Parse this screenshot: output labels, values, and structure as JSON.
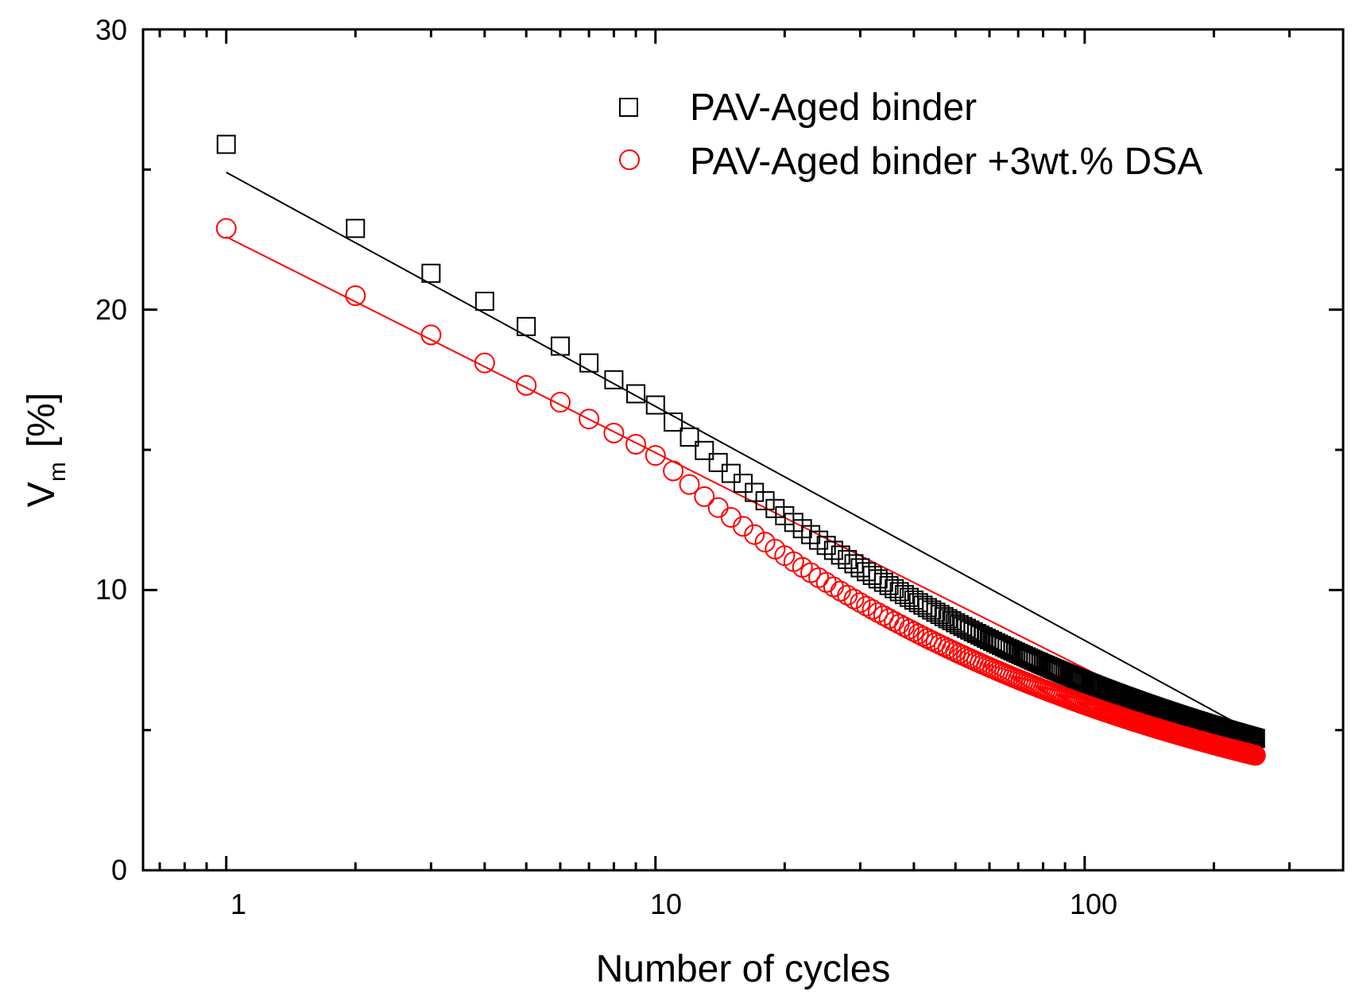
{
  "chart_data": {
    "type": "scatter",
    "xscale": "log",
    "xlim": [
      0.64,
      400
    ],
    "ylim": [
      0,
      30
    ],
    "xlabel": "Number of cycles",
    "ylabel": "V",
    "ylabel_subscript": "m",
    "ylabel_unit": "[%]",
    "grid": false,
    "legend_position": "top-right",
    "x_ticks": [
      1,
      10,
      100
    ],
    "x_tick_labels": [
      "1",
      "10",
      "100"
    ],
    "y_ticks": [
      0,
      10,
      20,
      30
    ],
    "y_tick_labels": [
      "0",
      "10",
      "20",
      "30"
    ],
    "y_minor_ticks": [
      5,
      15,
      25
    ],
    "cycles": {
      "start": 1,
      "end": 250
    },
    "series": [
      {
        "name": "PAV-Aged binder",
        "marker": "square",
        "color": "#000000",
        "fit": {
          "a": 24.9,
          "b": 8.35
        },
        "points_first": [
          {
            "x": 1,
            "y": 25.9
          },
          {
            "x": 2,
            "y": 22.9
          },
          {
            "x": 3,
            "y": 21.3
          },
          {
            "x": 4,
            "y": 20.3
          },
          {
            "x": 5,
            "y": 19.4
          },
          {
            "x": 6,
            "y": 18.7
          },
          {
            "x": 7,
            "y": 18.1
          },
          {
            "x": 8,
            "y": 17.5
          },
          {
            "x": 9,
            "y": 17.0
          },
          {
            "x": 10,
            "y": 16.6
          }
        ],
        "points_end": {
          "x": 250,
          "y": 4.7
        }
      },
      {
        "name": "PAV-Aged binder +3wt.% DSA",
        "marker": "circle",
        "color": "#ff0000",
        "fit": {
          "a": 22.6,
          "b": 7.7
        },
        "points_first": [
          {
            "x": 1,
            "y": 22.9
          },
          {
            "x": 2,
            "y": 20.5
          },
          {
            "x": 3,
            "y": 19.1
          },
          {
            "x": 4,
            "y": 18.1
          },
          {
            "x": 5,
            "y": 17.3
          },
          {
            "x": 6,
            "y": 16.7
          },
          {
            "x": 7,
            "y": 16.1
          },
          {
            "x": 8,
            "y": 15.6
          },
          {
            "x": 9,
            "y": 15.2
          },
          {
            "x": 10,
            "y": 14.8
          }
        ],
        "points_end": {
          "x": 250,
          "y": 4.1
        }
      }
    ]
  }
}
